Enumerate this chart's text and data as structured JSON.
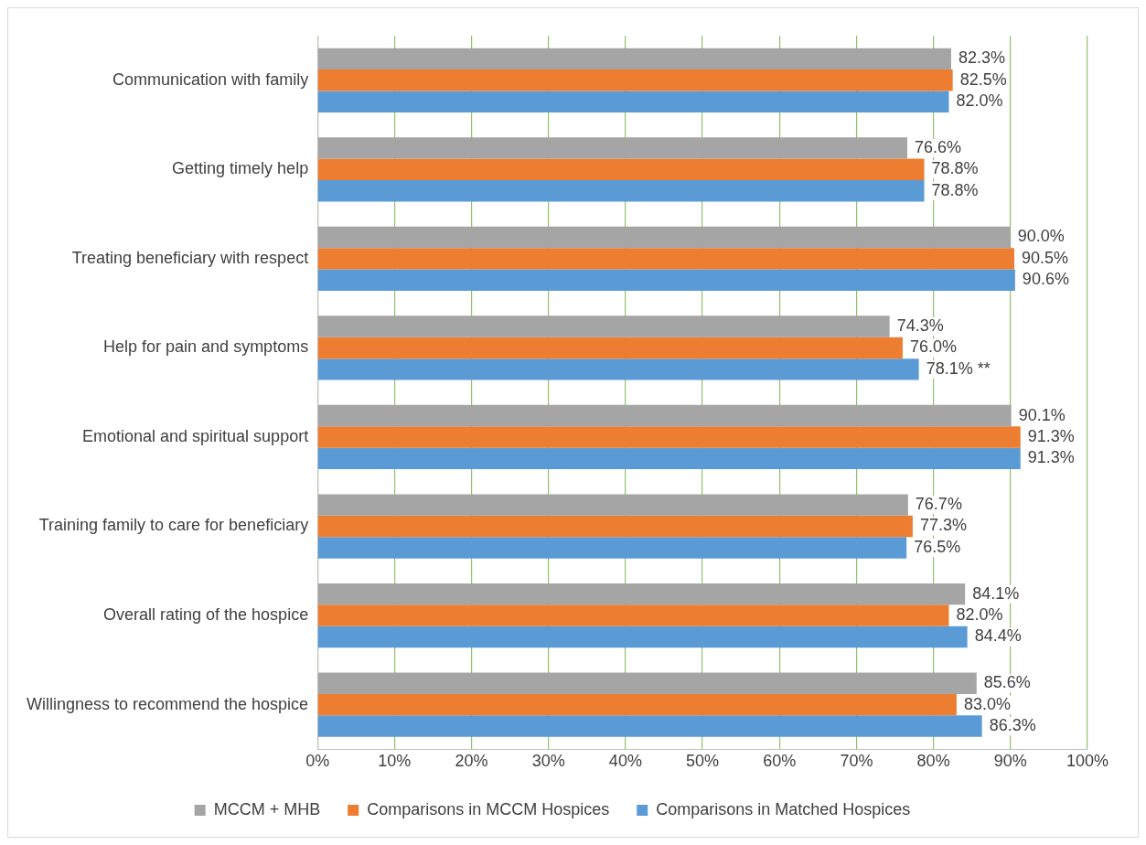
{
  "chart_data": {
    "type": "bar",
    "orientation": "horizontal",
    "categories": [
      "Communication with family",
      "Getting timely help",
      "Treating beneficiary with respect",
      "Help for pain and symptoms",
      "Emotional and spiritual support",
      "Training family to care for beneficiary",
      "Overall rating of the hospice",
      "Willingness to recommend the hospice"
    ],
    "series": [
      {
        "name": "MCCM + MHB",
        "color": "#a5a5a5",
        "values": [
          82.3,
          76.6,
          90.0,
          74.3,
          90.1,
          76.7,
          84.1,
          85.6
        ],
        "value_labels": [
          "82.3%",
          "76.6%",
          "90.0%",
          "74.3%",
          "90.1%",
          "76.7%",
          "84.1%",
          "85.6%"
        ]
      },
      {
        "name": "Comparisons in MCCM Hospices",
        "color": "#ed7d31",
        "values": [
          82.5,
          78.8,
          90.5,
          76.0,
          91.3,
          77.3,
          82.0,
          83.0
        ],
        "value_labels": [
          "82.5%",
          "78.8%",
          "90.5%",
          "76.0%",
          "91.3%",
          "77.3%",
          "82.0%",
          "83.0%"
        ]
      },
      {
        "name": "Comparisons in Matched Hospices",
        "color": "#5b9bd5",
        "values": [
          82.0,
          78.8,
          90.6,
          78.1,
          91.3,
          76.5,
          84.4,
          86.3
        ],
        "value_labels": [
          "82.0%",
          "78.8%",
          "90.6%",
          "78.1% **",
          "91.3%",
          "76.5%",
          "84.4%",
          "86.3%"
        ]
      }
    ],
    "xlim": [
      0,
      100
    ],
    "xticks": [
      {
        "value": 0,
        "label": "0%"
      },
      {
        "value": 10,
        "label": "10%"
      },
      {
        "value": 20,
        "label": "20%"
      },
      {
        "value": 30,
        "label": "30%"
      },
      {
        "value": 40,
        "label": "40%"
      },
      {
        "value": 50,
        "label": "50%"
      },
      {
        "value": 60,
        "label": "60%"
      },
      {
        "value": 70,
        "label": "70%"
      },
      {
        "value": 80,
        "label": "80%"
      },
      {
        "value": 90,
        "label": "90%"
      },
      {
        "value": 100,
        "label": "100%"
      }
    ],
    "grid": "x",
    "legend": "bottom"
  }
}
